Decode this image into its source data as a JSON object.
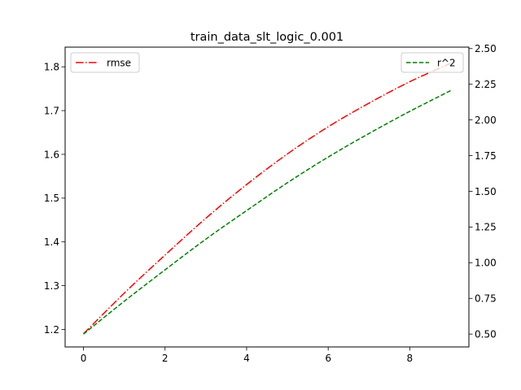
{
  "chart_data": {
    "type": "line",
    "title": "train_data_slt_logic_0.001",
    "x": [
      0,
      1,
      2,
      3,
      4,
      5,
      6,
      7,
      8,
      9
    ],
    "xlim": [
      -0.45,
      9.45
    ],
    "xticks": [
      0,
      2,
      4,
      6,
      8
    ],
    "left_axis": {
      "ylim": [
        1.16,
        1.845
      ],
      "ticks": [
        1.2,
        1.3,
        1.4,
        1.5,
        1.6,
        1.7,
        1.8
      ],
      "tick_labels": [
        "1.2",
        "1.3",
        "1.4",
        "1.5",
        "1.6",
        "1.7",
        "1.8"
      ]
    },
    "right_axis": {
      "ylim": [
        0.41,
        2.51
      ],
      "ticks": [
        0.5,
        0.75,
        1.0,
        1.25,
        1.5,
        1.75,
        2.0,
        2.25,
        2.5
      ],
      "tick_labels": [
        "0.50",
        "0.75",
        "1.00",
        "1.25",
        "1.50",
        "1.75",
        "2.00",
        "2.25",
        "2.50"
      ]
    },
    "series": [
      {
        "name": "rmse",
        "axis": "left",
        "color": "#ff0000",
        "linestyle": "dashdot",
        "values": [
          1.19,
          1.283,
          1.37,
          1.454,
          1.531,
          1.601,
          1.663,
          1.717,
          1.766,
          1.808
        ]
      },
      {
        "name": "r^2",
        "axis": "right",
        "color": "#008000",
        "linestyle": "dashed",
        "values": [
          0.5,
          0.73,
          0.95,
          1.165,
          1.365,
          1.56,
          1.74,
          1.905,
          2.06,
          2.205
        ]
      }
    ],
    "legends": [
      {
        "placement": "upper-left",
        "entries": [
          "rmse"
        ]
      },
      {
        "placement": "upper-right",
        "entries": [
          "r^2"
        ]
      }
    ],
    "grid": false
  }
}
